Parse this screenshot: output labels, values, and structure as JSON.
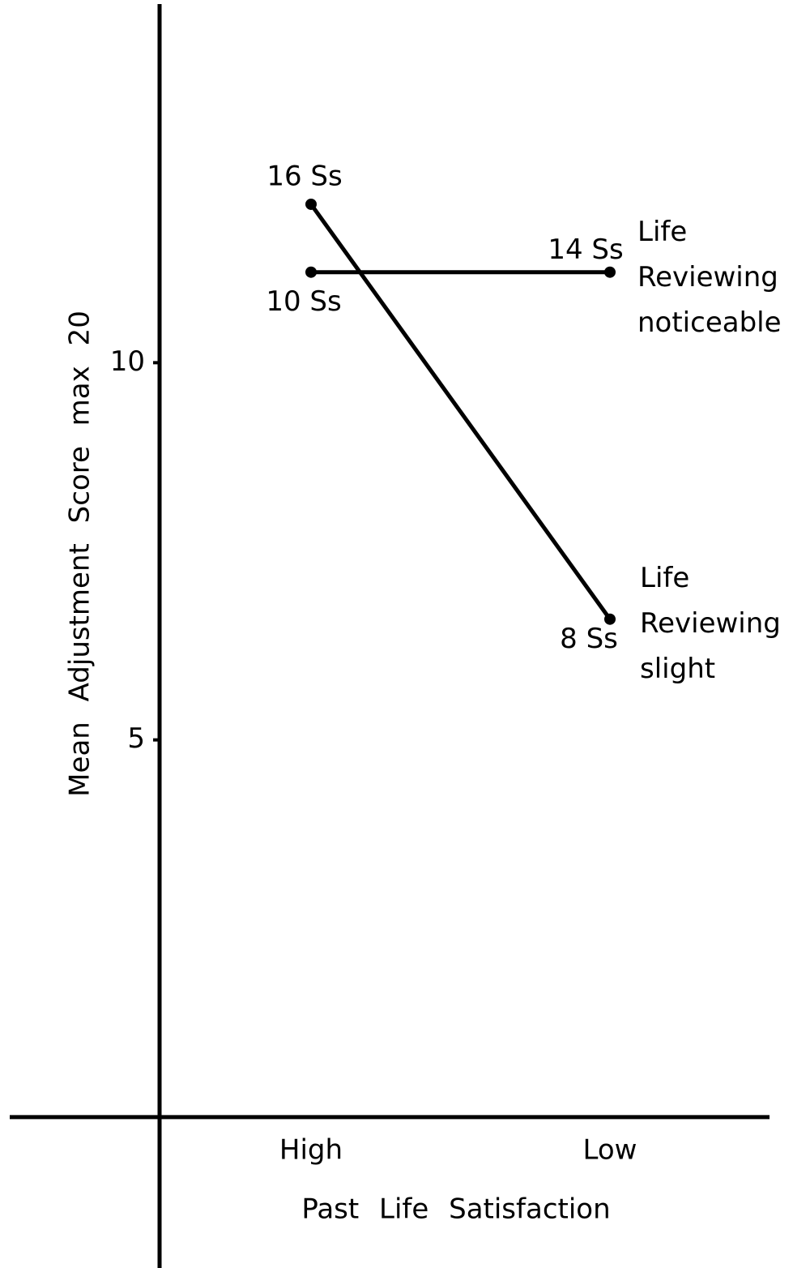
{
  "chart_data": {
    "type": "line",
    "categories": [
      "High",
      "Low"
    ],
    "xlabel": "Past Life Satisfaction",
    "ylabel": "Mean Adjustment Score max 20",
    "ylim": [
      -2,
      14.7
    ],
    "yticks": [
      5,
      10
    ],
    "series": [
      {
        "name": "Life Reviewing noticeable",
        "color": "#000000",
        "values": [
          11.2,
          11.2
        ],
        "n_labels": [
          "10 Ss",
          "14 Ss"
        ]
      },
      {
        "name": "Life Reviewing slight",
        "color": "#000000",
        "values": [
          12.1,
          6.6
        ],
        "n_labels": [
          "16 Ss",
          "8 Ss"
        ]
      }
    ]
  }
}
